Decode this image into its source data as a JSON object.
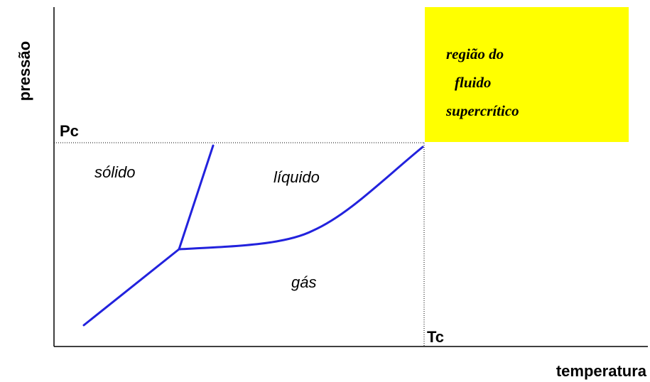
{
  "axes": {
    "y_label": "pressão",
    "x_label": "temperatura"
  },
  "markers": {
    "pressure": "Pc",
    "temperature": "Tc"
  },
  "regions": {
    "solid": "sólido",
    "liquid": "líquido",
    "gas": "gás",
    "supercritical": [
      "região do",
      "fluido",
      "supercrítico"
    ]
  }
}
